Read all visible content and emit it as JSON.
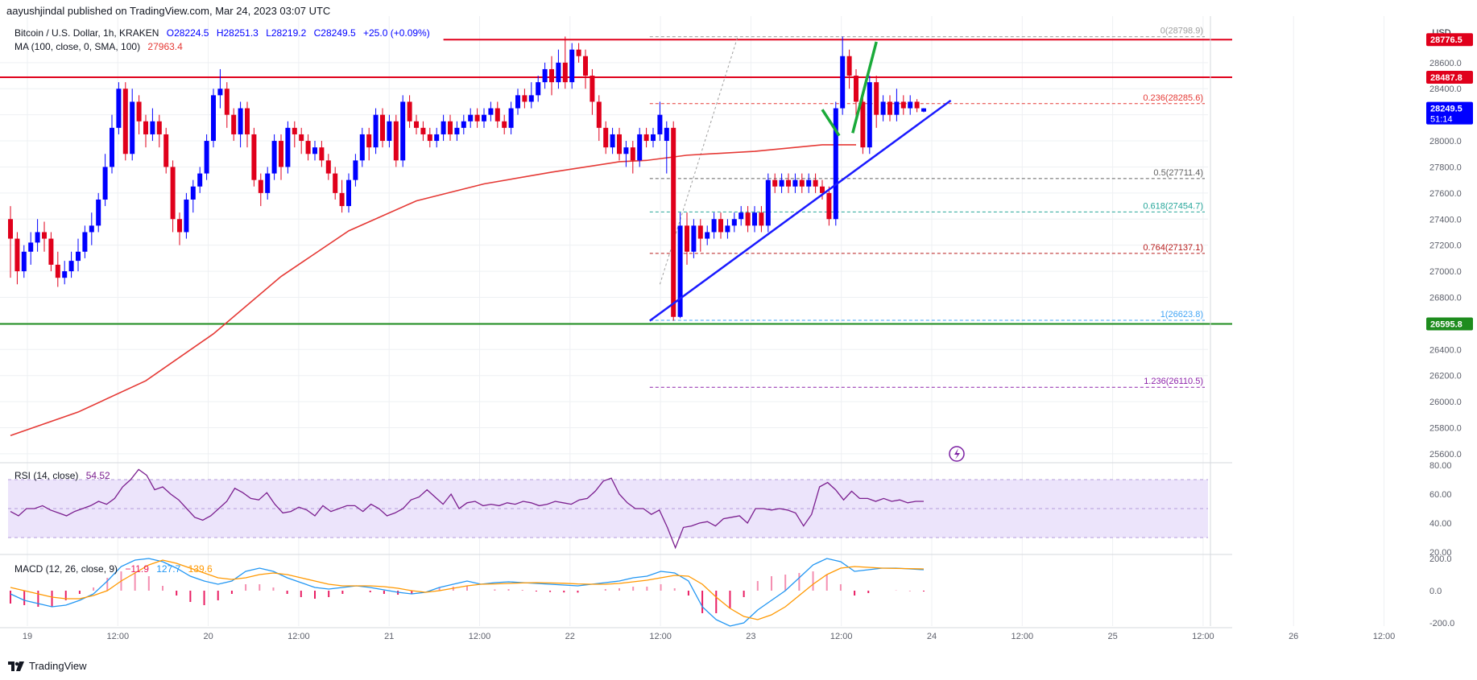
{
  "header": {
    "publish_line": "aayushjindal published on TradingView.com, Mar 24, 2023 03:07 UTC"
  },
  "legend": {
    "symbol": "Bitcoin / U.S. Dollar, 1h, KRAKEN",
    "open": "O28224.5",
    "high": "H28251.3",
    "low": "L28219.2",
    "close": "C28249.5",
    "change": "+25.0 (+0.09%)",
    "ma_label": "MA (100, close, 0, SMA, 100)",
    "ma_value": "27963.4",
    "rsi_label": "RSI (14, close)",
    "rsi_value": "54.52",
    "macd_label": "MACD (12, 26, close, 9)",
    "macd_hist": "−11.9",
    "macd_line": "127.7",
    "macd_signal": "139.6"
  },
  "footer": {
    "brand": "TradingView"
  },
  "colors": {
    "up": "#0000ff",
    "down": "#e0001b",
    "ma": "#e53935",
    "trend": "#1a1aff",
    "support": "#1e8c1e",
    "resistance": "#e0001b",
    "arrow": "#1aaa3a",
    "rsi": "#7b1f8f",
    "rsi_band": "#ece4fb",
    "macd": "#2196f3",
    "signal": "#ff9800",
    "hist_pos": "#f48fb1",
    "hist_neg": "#e91e63"
  },
  "chart_data": {
    "type": "candlestick",
    "x_ticks": [
      "19",
      "12:00",
      "20",
      "12:00",
      "21",
      "12:00",
      "22",
      "12:00",
      "23",
      "12:00",
      "24",
      "12:00",
      "25",
      "12:00",
      "26",
      "12:00"
    ],
    "currency": "USD",
    "price_ticks": [
      "28600.0",
      "28400.0",
      "28200.0",
      "28000.0",
      "27800.0",
      "27600.0",
      "27400.0",
      "27200.0",
      "27000.0",
      "26800.0",
      "26600.0",
      "26400.0",
      "26200.0",
      "26000.0",
      "25800.0",
      "25600.0"
    ],
    "ylim": [
      25550,
      28920
    ],
    "price_labels": [
      {
        "value": 28776.5,
        "text": "28776.5",
        "color": "#e0001b"
      },
      {
        "value": 28487.8,
        "text": "28487.8",
        "color": "#e0001b"
      },
      {
        "value": 28249.5,
        "text": "28249.5",
        "sub": "51:14",
        "color": "#0000ff"
      },
      {
        "value": 26595.8,
        "text": "26595.8",
        "color": "#1e8c1e"
      }
    ],
    "horizontal_lines": [
      {
        "value": 28776.5,
        "color": "#e0001b",
        "from_index": 64
      },
      {
        "value": 28487.8,
        "color": "#e0001b",
        "from_index": 0
      },
      {
        "value": 26595.8,
        "color": "#1e8c1e",
        "from_index": 0
      }
    ],
    "fib_levels": [
      {
        "ratio": "0",
        "value": 28798.9,
        "text": "0(28798.9)",
        "color": "#9e9e9e"
      },
      {
        "ratio": "0.236",
        "value": 28285.6,
        "text": "0.236(28285.6)",
        "color": "#e53935"
      },
      {
        "ratio": "0.5",
        "value": 27711.4,
        "text": "0.5(27711.4)",
        "color": "#616161"
      },
      {
        "ratio": "0.618",
        "value": 27454.7,
        "text": "0.618(27454.7)",
        "color": "#26a69a"
      },
      {
        "ratio": "0.764",
        "value": 27137.1,
        "text": "0.764(27137.1)",
        "color": "#b71c1c"
      },
      {
        "ratio": "1",
        "value": 26623.8,
        "text": "1(26623.8)",
        "color": "#42a5f5"
      },
      {
        "ratio": "1.236",
        "value": 26110.5,
        "text": "1.236(26110.5)",
        "color": "#8e24aa"
      }
    ],
    "trendline": {
      "start": [
        94.5,
        26620
      ],
      "end": [
        139,
        28310
      ]
    },
    "ma100": [
      [
        0,
        25740
      ],
      [
        10,
        25920
      ],
      [
        20,
        26160
      ],
      [
        30,
        26520
      ],
      [
        40,
        26960
      ],
      [
        50,
        27310
      ],
      [
        60,
        27540
      ],
      [
        70,
        27670
      ],
      [
        80,
        27760
      ],
      [
        90,
        27840
      ],
      [
        94,
        27850
      ],
      [
        100,
        27890
      ],
      [
        110,
        27920
      ],
      [
        120,
        27970
      ],
      [
        125,
        27970
      ]
    ],
    "candles": [
      [
        27400,
        27250,
        27500,
        26950
      ],
      [
        27250,
        27000,
        27300,
        26900
      ],
      [
        27000,
        27150,
        27200,
        26950
      ],
      [
        27150,
        27220,
        27300,
        27050
      ],
      [
        27220,
        27300,
        27400,
        27150
      ],
      [
        27300,
        27250,
        27380,
        27150
      ],
      [
        27250,
        27050,
        27300,
        27000
      ],
      [
        27050,
        26950,
        27150,
        26880
      ],
      [
        26950,
        27000,
        27080,
        26900
      ],
      [
        27000,
        27080,
        27150,
        26950
      ],
      [
        27080,
        27150,
        27250,
        27000
      ],
      [
        27150,
        27300,
        27350,
        27100
      ],
      [
        27300,
        27350,
        27450,
        27200
      ],
      [
        27350,
        27550,
        27600,
        27300
      ],
      [
        27550,
        27800,
        27900,
        27500
      ],
      [
        27800,
        28100,
        28200,
        27750
      ],
      [
        28100,
        28400,
        28450,
        28050
      ],
      [
        28400,
        27900,
        28450,
        27850
      ],
      [
        27900,
        28300,
        28400,
        27850
      ],
      [
        28300,
        28150,
        28350,
        28050
      ],
      [
        28150,
        28050,
        28200,
        27950
      ],
      [
        28050,
        28150,
        28250,
        28000
      ],
      [
        28150,
        28050,
        28200,
        27950
      ],
      [
        28050,
        27800,
        28100,
        27750
      ],
      [
        27800,
        27400,
        27850,
        27300
      ],
      [
        27400,
        27300,
        27450,
        27200
      ],
      [
        27300,
        27550,
        27600,
        27250
      ],
      [
        27550,
        27650,
        27700,
        27450
      ],
      [
        27650,
        27750,
        27800,
        27600
      ],
      [
        27750,
        28000,
        28050,
        27700
      ],
      [
        28000,
        28350,
        28400,
        27950
      ],
      [
        28350,
        28400,
        28550,
        28250
      ],
      [
        28400,
        28200,
        28450,
        28100
      ],
      [
        28200,
        28050,
        28250,
        28000
      ],
      [
        28050,
        28250,
        28300,
        27950
      ],
      [
        28250,
        28050,
        28300,
        27950
      ],
      [
        28050,
        27700,
        28100,
        27650
      ],
      [
        27700,
        27600,
        27750,
        27500
      ],
      [
        27600,
        27750,
        27800,
        27550
      ],
      [
        27750,
        28000,
        28050,
        27700
      ],
      [
        28000,
        27800,
        28050,
        27700
      ],
      [
        27800,
        28100,
        28150,
        27750
      ],
      [
        28100,
        28050,
        28150,
        27950
      ],
      [
        28050,
        28000,
        28100,
        27900
      ],
      [
        28000,
        27900,
        28050,
        27850
      ],
      [
        27900,
        27950,
        28000,
        27850
      ],
      [
        27950,
        27850,
        28000,
        27800
      ],
      [
        27850,
        27750,
        27900,
        27700
      ],
      [
        27750,
        27600,
        27800,
        27550
      ],
      [
        27600,
        27500,
        27700,
        27450
      ],
      [
        27500,
        27700,
        27750,
        27450
      ],
      [
        27700,
        27850,
        27900,
        27650
      ],
      [
        27850,
        28050,
        28100,
        27800
      ],
      [
        28050,
        27950,
        28100,
        27850
      ],
      [
        27950,
        28200,
        28250,
        27900
      ],
      [
        28200,
        28000,
        28250,
        27950
      ],
      [
        28000,
        28150,
        28200,
        27950
      ],
      [
        28150,
        27850,
        28200,
        27800
      ],
      [
        27850,
        28300,
        28350,
        27800
      ],
      [
        28300,
        28150,
        28350,
        28100
      ],
      [
        28150,
        28100,
        28200,
        28050
      ],
      [
        28100,
        28050,
        28150,
        28000
      ],
      [
        28050,
        28000,
        28100,
        27950
      ],
      [
        28000,
        28050,
        28100,
        27950
      ],
      [
        28050,
        28150,
        28200,
        28000
      ],
      [
        28150,
        28050,
        28200,
        28000
      ],
      [
        28050,
        28100,
        28150,
        28000
      ],
      [
        28100,
        28150,
        28200,
        28050
      ],
      [
        28150,
        28200,
        28250,
        28100
      ],
      [
        28200,
        28150,
        28250,
        28100
      ],
      [
        28150,
        28200,
        28250,
        28100
      ],
      [
        28200,
        28250,
        28300,
        28150
      ],
      [
        28250,
        28150,
        28300,
        28100
      ],
      [
        28150,
        28100,
        28200,
        28050
      ],
      [
        28100,
        28250,
        28300,
        28050
      ],
      [
        28250,
        28350,
        28400,
        28200
      ],
      [
        28350,
        28300,
        28400,
        28250
      ],
      [
        28300,
        28350,
        28450,
        28250
      ],
      [
        28350,
        28450,
        28500,
        28300
      ],
      [
        28450,
        28550,
        28600,
        28400
      ],
      [
        28550,
        28450,
        28650,
        28350
      ],
      [
        28450,
        28600,
        28700,
        28400
      ],
      [
        28600,
        28450,
        28800,
        28400
      ],
      [
        28450,
        28700,
        28750,
        28400
      ],
      [
        28700,
        28650,
        28750,
        28600
      ],
      [
        28650,
        28500,
        28700,
        28400
      ],
      [
        28500,
        28300,
        28550,
        28200
      ],
      [
        28300,
        28100,
        28350,
        28000
      ],
      [
        28100,
        27950,
        28150,
        27900
      ],
      [
        27950,
        28050,
        28100,
        27900
      ],
      [
        28050,
        27900,
        28100,
        27850
      ],
      [
        27900,
        27950,
        28000,
        27800
      ],
      [
        27950,
        27850,
        28000,
        27750
      ],
      [
        27850,
        28050,
        28100,
        27800
      ],
      [
        28050,
        28000,
        28100,
        27950
      ],
      [
        28000,
        28050,
        28100,
        27950
      ],
      [
        28050,
        28200,
        28300,
        28000
      ],
      [
        28000,
        28100,
        28150,
        27750
      ],
      [
        28100,
        26650,
        28150,
        26620
      ],
      [
        26650,
        27350,
        27450,
        26640
      ],
      [
        27350,
        27150,
        27450,
        27050
      ],
      [
        27150,
        27350,
        27400,
        27100
      ],
      [
        27350,
        27250,
        27400,
        27150
      ],
      [
        27250,
        27300,
        27350,
        27200
      ],
      [
        27300,
        27400,
        27450,
        27250
      ],
      [
        27400,
        27300,
        27450,
        27250
      ],
      [
        27300,
        27350,
        27400,
        27250
      ],
      [
        27350,
        27400,
        27450,
        27300
      ],
      [
        27400,
        27450,
        27500,
        27350
      ],
      [
        27450,
        27350,
        27500,
        27300
      ],
      [
        27350,
        27450,
        27500,
        27300
      ],
      [
        27450,
        27350,
        27500,
        27300
      ],
      [
        27350,
        27700,
        27750,
        27300
      ],
      [
        27700,
        27650,
        27750,
        27600
      ],
      [
        27650,
        27700,
        27750,
        27600
      ],
      [
        27700,
        27650,
        27750,
        27600
      ],
      [
        27650,
        27700,
        27750,
        27600
      ],
      [
        27700,
        27650,
        27750,
        27600
      ],
      [
        27650,
        27700,
        27750,
        27600
      ],
      [
        27700,
        27650,
        27750,
        27600
      ],
      [
        27650,
        27600,
        27700,
        27550
      ],
      [
        27600,
        27400,
        27650,
        27350
      ],
      [
        27400,
        28250,
        28300,
        27350
      ],
      [
        28250,
        28650,
        28800,
        28200
      ],
      [
        28650,
        28500,
        28700,
        28400
      ],
      [
        28500,
        28300,
        28550,
        28150
      ],
      [
        28300,
        27950,
        28350,
        27900
      ],
      [
        27950,
        28450,
        28500,
        27900
      ],
      [
        28450,
        28200,
        28500,
        28100
      ],
      [
        28200,
        28300,
        28350,
        28150
      ],
      [
        28300,
        28200,
        28350,
        28150
      ],
      [
        28200,
        28300,
        28400,
        28150
      ],
      [
        28300,
        28250,
        28350,
        28200
      ],
      [
        28250,
        28300,
        28350,
        28200
      ],
      [
        28300,
        28250,
        28320,
        28220
      ],
      [
        28224.5,
        28249.5,
        28251.3,
        28219.2
      ]
    ],
    "rsi": {
      "ylim": [
        20,
        80
      ],
      "ticks": [
        "80.00",
        "60.00",
        "40.00",
        "20.00"
      ],
      "band": [
        30,
        70
      ],
      "values": [
        48,
        45,
        50,
        50,
        52,
        49,
        47,
        45,
        48,
        50,
        52,
        55,
        53,
        57,
        65,
        70,
        77,
        73,
        63,
        65,
        60,
        56,
        50,
        44,
        42,
        45,
        50,
        55,
        64,
        61,
        57,
        56,
        61,
        53,
        47,
        48,
        51,
        49,
        45,
        52,
        48,
        50,
        52,
        52,
        48,
        53,
        50,
        45,
        47,
        50,
        56,
        58,
        63,
        58,
        53,
        60,
        50,
        54,
        55,
        52,
        53,
        52,
        54,
        53,
        55,
        54,
        52,
        53,
        55,
        54,
        53,
        56,
        57,
        62,
        69,
        71,
        60,
        54,
        50,
        50,
        46,
        49,
        37,
        23,
        37,
        38,
        40,
        41,
        38,
        43,
        44,
        45,
        40,
        50,
        50,
        49,
        50,
        49,
        47,
        38,
        46,
        65,
        68,
        63,
        56,
        62,
        57,
        57,
        55,
        57,
        55,
        56,
        54,
        55,
        55
      ],
      "rsi_index_offset": 0
    },
    "macd": {
      "ylim": [
        -220,
        210
      ],
      "ticks": [
        "200.0",
        "0.0",
        "-200.0"
      ],
      "macd": [
        -20,
        -60,
        -80,
        -100,
        -90,
        -60,
        -20,
        60,
        150,
        190,
        200,
        180,
        140,
        90,
        60,
        40,
        60,
        120,
        140,
        120,
        80,
        50,
        20,
        10,
        20,
        30,
        20,
        5,
        -10,
        -20,
        -10,
        20,
        40,
        60,
        40,
        50,
        55,
        50,
        45,
        40,
        35,
        30,
        40,
        50,
        60,
        80,
        90,
        120,
        110,
        60,
        -100,
        -180,
        -220,
        -200,
        -120,
        -60,
        0,
        80,
        160,
        200,
        180,
        120,
        130,
        140,
        140,
        135,
        130
      ],
      "signal": [
        20,
        0,
        -20,
        -40,
        -50,
        -50,
        -30,
        0,
        60,
        110,
        160,
        190,
        170,
        140,
        110,
        80,
        70,
        80,
        100,
        110,
        100,
        80,
        60,
        40,
        30,
        30,
        30,
        25,
        15,
        0,
        -10,
        0,
        15,
        30,
        40,
        42,
        45,
        48,
        50,
        48,
        46,
        42,
        40,
        40,
        45,
        55,
        65,
        80,
        95,
        90,
        40,
        -40,
        -110,
        -160,
        -180,
        -150,
        -100,
        -30,
        40,
        100,
        140,
        150,
        145,
        140,
        138,
        137,
        135
      ],
      "hist": [
        -80,
        -90,
        -100,
        -100,
        -60,
        -20,
        20,
        80,
        120,
        110,
        90,
        30,
        -30,
        -70,
        -90,
        -60,
        -20,
        40,
        40,
        20,
        -20,
        -40,
        -50,
        -40,
        -20,
        0,
        -10,
        -20,
        -25,
        -20,
        0,
        20,
        25,
        30,
        0,
        8,
        10,
        5,
        -5,
        -8,
        -11,
        -12,
        0,
        10,
        15,
        25,
        25,
        40,
        15,
        -30,
        -140,
        -140,
        -110,
        -40,
        60,
        90,
        100,
        110,
        120,
        100,
        40,
        -30,
        -15,
        0,
        2,
        -2,
        -5
      ]
    }
  }
}
